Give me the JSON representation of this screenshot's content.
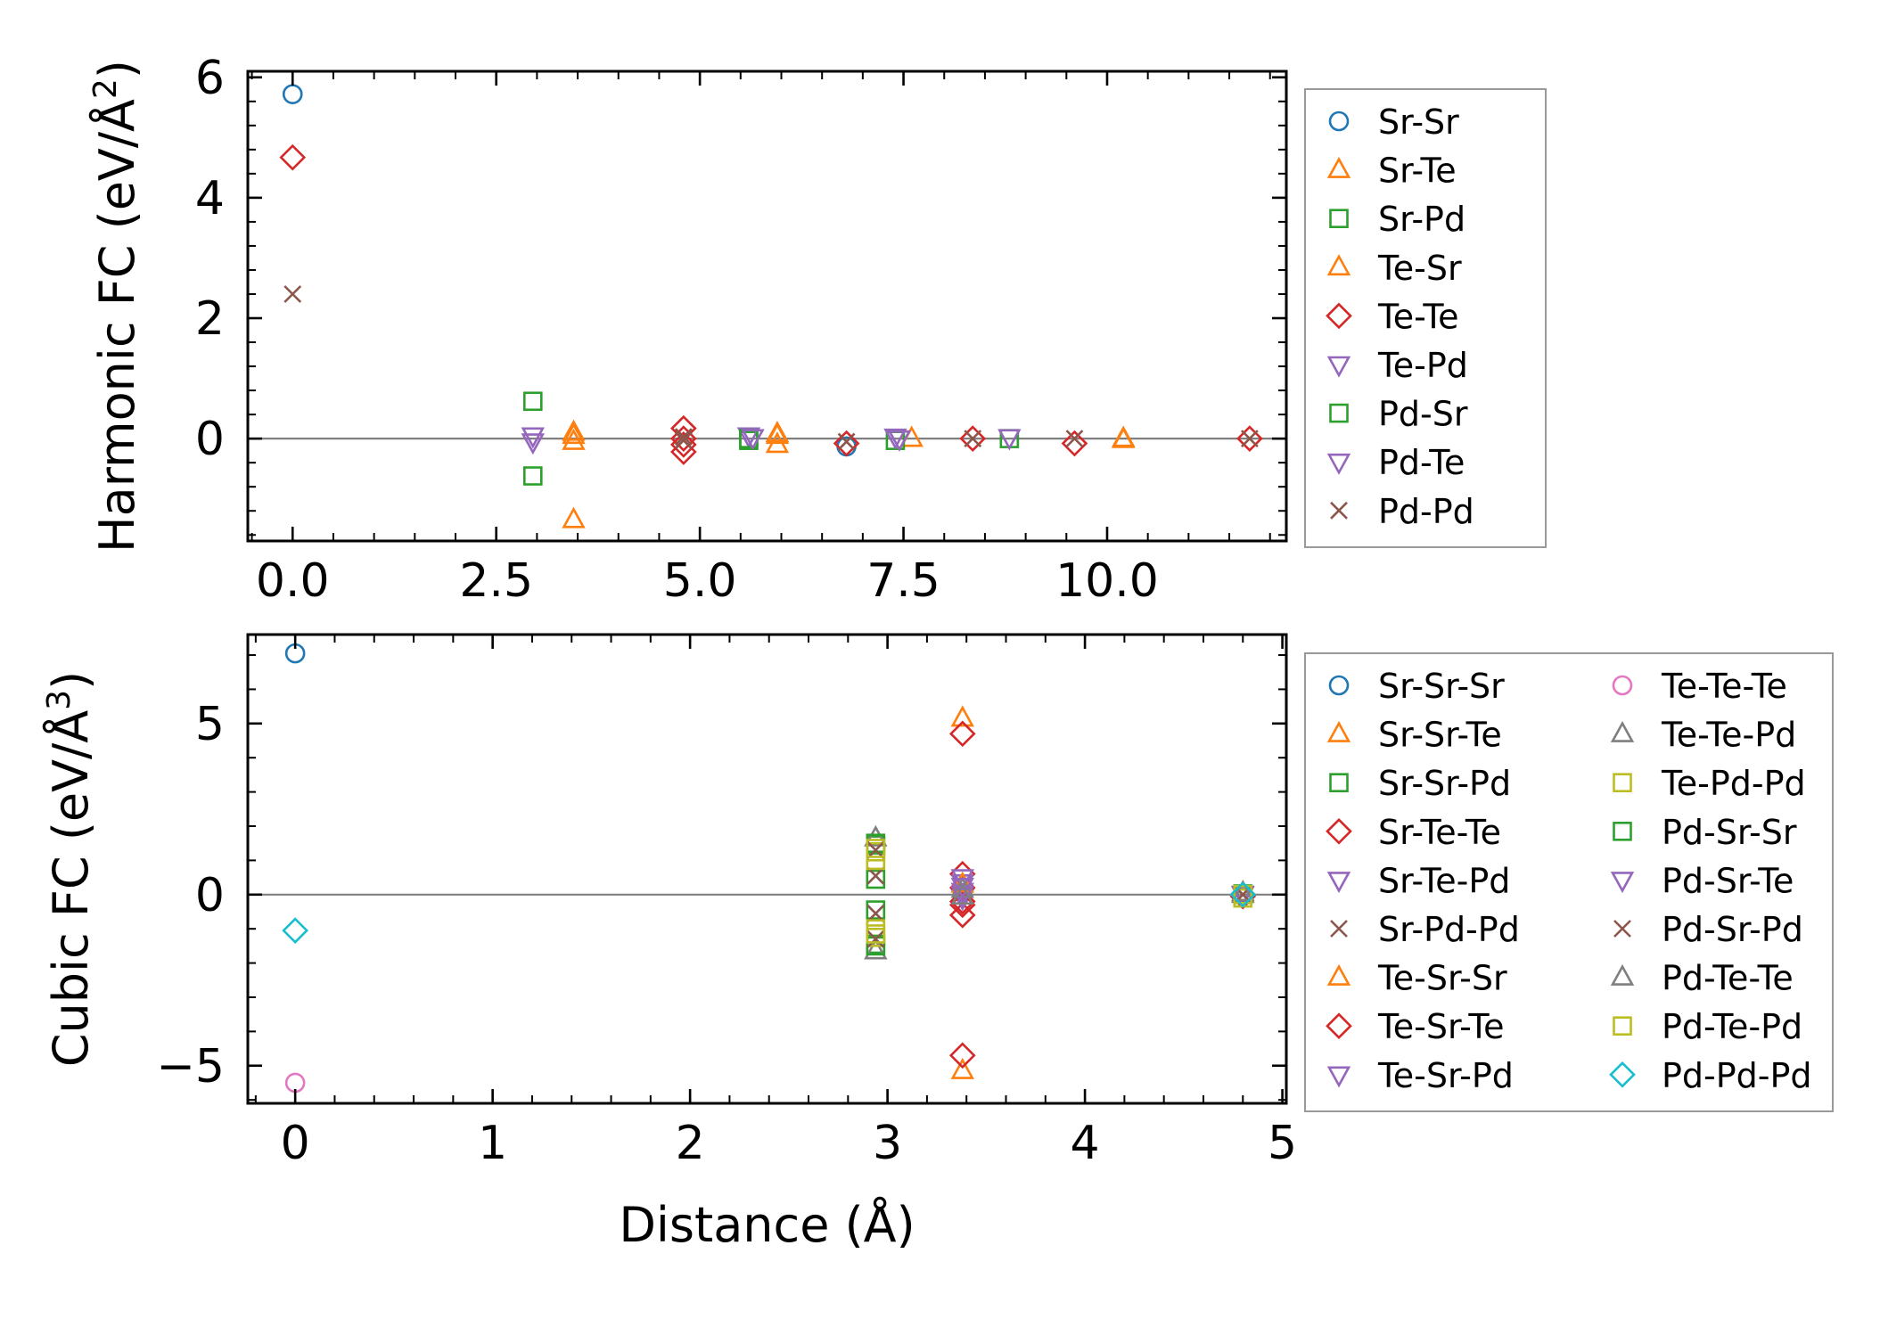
{
  "chart_data": [
    {
      "type": "scatter",
      "ylabel": "Harmonic FC (eV/Å²)",
      "ylabel_main": "Harmonic FC (eV/Å",
      "ylabel_sup": "2",
      "ylabel_close": ")",
      "xlabel": "",
      "xlim": [
        -0.55,
        12.2
      ],
      "ylim": [
        -1.7,
        6.1
      ],
      "xticks": [
        0.0,
        2.5,
        5.0,
        7.5,
        10.0
      ],
      "xtick_labels": [
        "0.0",
        "2.5",
        "5.0",
        "7.5",
        "10.0"
      ],
      "yticks": [
        0,
        2,
        4,
        6
      ],
      "ytick_labels": [
        "0",
        "2",
        "4",
        "6"
      ],
      "legend_columns": 1,
      "series": [
        {
          "name": "Sr-Sr",
          "marker": "circle",
          "color": "#1f77b4",
          "points": [
            [
              0,
              5.72
            ],
            [
              6.8,
              -0.13
            ]
          ]
        },
        {
          "name": "Sr-Te",
          "marker": "triangle-up",
          "color": "#ff7f0e",
          "points": [
            [
              3.45,
              0.05
            ],
            [
              3.45,
              -0.05
            ],
            [
              5.95,
              0.05
            ],
            [
              5.95,
              -0.1
            ],
            [
              7.6,
              0.0
            ],
            [
              10.2,
              0.0
            ]
          ]
        },
        {
          "name": "Sr-Pd",
          "marker": "square",
          "color": "#2ca02c",
          "points": [
            [
              2.95,
              0.62
            ],
            [
              5.6,
              -0.03
            ],
            [
              7.4,
              -0.03
            ],
            [
              8.8,
              0.0
            ]
          ]
        },
        {
          "name": "Te-Sr",
          "marker": "triangle-up",
          "color": "#ff7f0e",
          "points": [
            [
              3.45,
              -1.35
            ],
            [
              3.45,
              0.1
            ],
            [
              5.95,
              0.08
            ],
            [
              10.2,
              -0.02
            ]
          ]
        },
        {
          "name": "Te-Te",
          "marker": "diamond",
          "color": "#d62728",
          "points": [
            [
              0,
              4.67
            ],
            [
              4.8,
              0.17
            ],
            [
              4.8,
              0.0
            ],
            [
              4.8,
              -0.1
            ],
            [
              4.8,
              -0.22
            ],
            [
              6.8,
              -0.08
            ],
            [
              8.35,
              0.0
            ],
            [
              9.6,
              -0.08
            ],
            [
              11.75,
              0.0
            ]
          ]
        },
        {
          "name": "Te-Pd",
          "marker": "triangle-down",
          "color": "#9467bd",
          "points": [
            [
              2.95,
              0.05
            ],
            [
              5.6,
              0.05
            ],
            [
              7.4,
              0.03
            ],
            [
              8.8,
              0.02
            ]
          ]
        },
        {
          "name": "Pd-Sr",
          "marker": "square",
          "color": "#2ca02c",
          "points": [
            [
              2.95,
              -0.62
            ],
            [
              5.6,
              0.0
            ]
          ]
        },
        {
          "name": "Pd-Te",
          "marker": "triangle-down",
          "color": "#9467bd",
          "points": [
            [
              2.95,
              -0.05
            ],
            [
              5.65,
              0.02
            ],
            [
              7.45,
              0.0
            ]
          ]
        },
        {
          "name": "Pd-Pd",
          "marker": "x",
          "color": "#8c564b",
          "points": [
            [
              0,
              2.4
            ],
            [
              4.8,
              0.03
            ],
            [
              4.8,
              -0.03
            ],
            [
              6.8,
              -0.05
            ],
            [
              8.35,
              0.0
            ],
            [
              9.6,
              0.0
            ],
            [
              11.75,
              0.0
            ]
          ]
        }
      ]
    },
    {
      "type": "scatter",
      "ylabel": "Cubic FC (eV/Å³)",
      "ylabel_main": "Cubic FC (eV/Å",
      "ylabel_sup": "3",
      "ylabel_close": ")",
      "xlabel": "Distance (Å)",
      "xlim": [
        -0.24,
        5.02
      ],
      "ylim": [
        -6.1,
        7.6
      ],
      "xticks": [
        0,
        1,
        2,
        3,
        4,
        5
      ],
      "xtick_labels": [
        "0",
        "1",
        "2",
        "3",
        "4",
        "5"
      ],
      "yticks": [
        -5,
        0,
        5
      ],
      "ytick_labels": [
        "−5",
        "0",
        "5"
      ],
      "legend_columns": 2,
      "series": [
        {
          "name": "Sr-Sr-Sr",
          "marker": "circle",
          "color": "#1f77b4",
          "points": [
            [
              0,
              7.05
            ]
          ]
        },
        {
          "name": "Sr-Sr-Te",
          "marker": "triangle-up",
          "color": "#ff7f0e",
          "points": [
            [
              3.38,
              5.15
            ],
            [
              3.38,
              -5.15
            ],
            [
              4.8,
              0.0
            ]
          ]
        },
        {
          "name": "Sr-Sr-Pd",
          "marker": "square",
          "color": "#2ca02c",
          "points": [
            [
              2.94,
              1.45
            ],
            [
              2.94,
              0.45
            ],
            [
              2.94,
              -0.45
            ],
            [
              2.94,
              -1.45
            ],
            [
              4.8,
              0.0
            ]
          ]
        },
        {
          "name": "Sr-Te-Te",
          "marker": "diamond",
          "color": "#d62728",
          "points": [
            [
              3.38,
              4.7
            ],
            [
              3.38,
              0.6
            ],
            [
              3.38,
              0.2
            ],
            [
              3.38,
              -0.2
            ],
            [
              3.38,
              -0.6
            ],
            [
              4.8,
              0.0
            ]
          ]
        },
        {
          "name": "Sr-Te-Pd",
          "marker": "triangle-down",
          "color": "#9467bd",
          "points": [
            [
              3.38,
              0.35
            ],
            [
              3.38,
              0.1
            ],
            [
              3.38,
              -0.1
            ],
            [
              4.8,
              0.0
            ]
          ]
        },
        {
          "name": "Sr-Pd-Pd",
          "marker": "x",
          "color": "#8c564b",
          "points": [
            [
              2.94,
              0.55
            ],
            [
              2.94,
              -0.55
            ],
            [
              4.8,
              0.0
            ]
          ]
        },
        {
          "name": "Te-Sr-Sr",
          "marker": "triangle-up",
          "color": "#ff7f0e",
          "points": [
            [
              3.38,
              0.3
            ],
            [
              4.8,
              0.05
            ]
          ]
        },
        {
          "name": "Te-Sr-Te",
          "marker": "diamond",
          "color": "#d62728",
          "points": [
            [
              3.38,
              -4.7
            ],
            [
              3.38,
              -0.3
            ],
            [
              4.8,
              -0.05
            ]
          ]
        },
        {
          "name": "Te-Sr-Pd",
          "marker": "triangle-down",
          "color": "#9467bd",
          "points": [
            [
              3.38,
              0.5
            ],
            [
              4.8,
              0.0
            ]
          ]
        },
        {
          "name": "Te-Te-Te",
          "marker": "circle",
          "color": "#e377c2",
          "points": [
            [
              0,
              -5.5
            ]
          ]
        },
        {
          "name": "Te-Te-Pd",
          "marker": "triangle-up",
          "color": "#7f7f7f",
          "points": [
            [
              2.94,
              1.65
            ],
            [
              2.94,
              -1.65
            ],
            [
              3.38,
              0.15
            ],
            [
              4.8,
              0.0
            ]
          ]
        },
        {
          "name": "Te-Pd-Pd",
          "marker": "square",
          "color": "#bcbd22",
          "points": [
            [
              2.94,
              1.25
            ],
            [
              2.94,
              1.0
            ],
            [
              2.94,
              -1.0
            ],
            [
              2.94,
              -1.25
            ],
            [
              4.8,
              -0.1
            ]
          ]
        },
        {
          "name": "Pd-Sr-Sr",
          "marker": "square",
          "color": "#2ca02c",
          "points": [
            [
              2.94,
              1.5
            ],
            [
              2.94,
              -1.5
            ],
            [
              4.8,
              0.02
            ]
          ]
        },
        {
          "name": "Pd-Sr-Te",
          "marker": "triangle-down",
          "color": "#9467bd",
          "points": [
            [
              3.38,
              0.0
            ],
            [
              3.38,
              0.25
            ],
            [
              4.8,
              0.02
            ]
          ]
        },
        {
          "name": "Pd-Sr-Pd",
          "marker": "x",
          "color": "#8c564b",
          "points": [
            [
              2.94,
              1.3
            ],
            [
              2.94,
              -1.3
            ],
            [
              4.8,
              0.0
            ]
          ]
        },
        {
          "name": "Pd-Te-Te",
          "marker": "triangle-up",
          "color": "#7f7f7f",
          "points": [
            [
              3.38,
              -0.05
            ],
            [
              4.8,
              0.05
            ]
          ]
        },
        {
          "name": "Pd-Te-Pd",
          "marker": "square",
          "color": "#bcbd22",
          "points": [
            [
              2.94,
              1.35
            ],
            [
              2.94,
              -1.15
            ],
            [
              4.8,
              0.0
            ]
          ]
        },
        {
          "name": "Pd-Pd-Pd",
          "marker": "diamond",
          "color": "#17becf",
          "points": [
            [
              0,
              -1.05
            ],
            [
              4.8,
              0.0
            ]
          ]
        }
      ]
    }
  ]
}
